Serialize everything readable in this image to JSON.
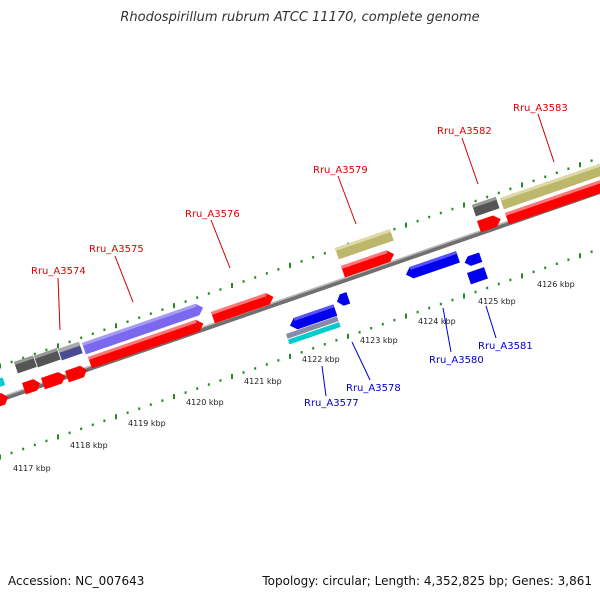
{
  "title": "Rhodospirillum rubrum ATCC 11170, complete genome",
  "footer": {
    "accession": "Accession: NC_007643",
    "summary": "Topology: circular; Length: 4,352,825 bp; Genes: 3,861"
  },
  "colors": {
    "cds": "#ff0000",
    "blue_feature": "#0000ee",
    "purple_feature": "#7b68ee",
    "olive_feature": "#bdb76b",
    "gray_feature": "#555555",
    "cyan_feature": "#00cccc",
    "backbone": "#808080",
    "tick": "#228b22",
    "label_forward": "#dd0000",
    "label_reverse": "#0000cc"
  },
  "kbp_labels": [
    "4117 kbp",
    "4118 kbp",
    "4119 kbp",
    "4120 kbp",
    "4121 kbp",
    "4122 kbp",
    "4123 kbp",
    "4124 kbp",
    "4125 kbp",
    "4126 kbp"
  ],
  "gene_labels": {
    "forward": [
      "Rru_A3574",
      "Rru_A3575",
      "Rru_A3576",
      "Rru_A3579",
      "Rru_A3582",
      "Rru_A3583"
    ],
    "reverse": [
      "Rru_A3577",
      "Rru_A3578",
      "Rru_A3580",
      "Rru_A3581"
    ]
  }
}
